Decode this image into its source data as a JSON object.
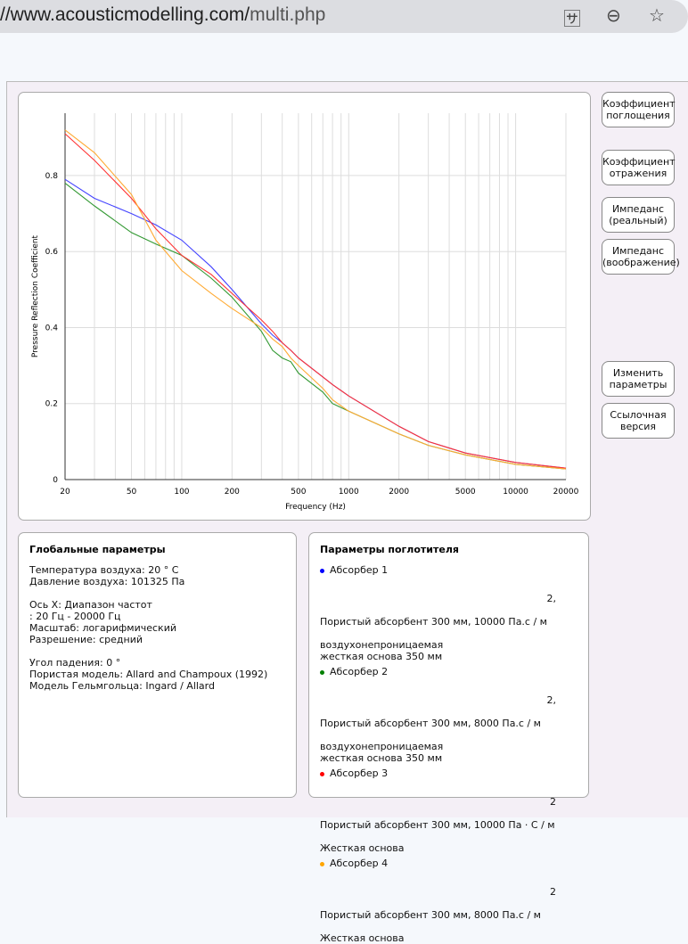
{
  "browser": {
    "url_prefix": "//www.acousticmodelling.com/",
    "url_path": "multi.php"
  },
  "buttons": [
    "Коэффициент поглощения",
    "Коэффициент отражения",
    "Импеданс (реальный)",
    "Импеданс (воображение)",
    "Изменить параметры",
    "Ссылочная версия"
  ],
  "global": {
    "title": "Глобальные параметры",
    "lines": [
      "Температура воздуха: 20 ° C",
      "Давление воздуха: 101325 Па",
      "",
      "Ось X: Диапазон частот",
      ": 20 Гц - 20000 Гц",
      "Масштаб: логарифмический",
      "Разрешение: средний",
      "",
      "Угол падения: 0 °",
      "Пористая модель: Allard and Champoux (1992)",
      "Модель Гельмгольца: Ingard / Allard"
    ]
  },
  "absorbers": {
    "title": "Параметры поглотителя",
    "items": [
      {
        "name": "Абсорбер 1",
        "color": "#0000ff",
        "sup": "2,",
        "desc": "Пористый абсорбент 300 мм, 10000 Па.с / м",
        "extra": "воздухонепроницаемая\nжесткая основа 350 мм"
      },
      {
        "name": "Абсорбер 2",
        "color": "#008000",
        "sup": "2,",
        "desc": "Пористый абсорбент 300 мм, 8000 Па.с / м",
        "extra": "воздухонепроницаемая\nжесткая основа 350 мм"
      },
      {
        "name": "Абсорбер 3",
        "color": "#ff0000",
        "sup": "2",
        "desc": "Пористый абсорбент 300 мм, 10000 Па · С / м",
        "extra": "Жесткая основа"
      },
      {
        "name": "Абсорбер 4",
        "color": "#ffa500",
        "sup": "2",
        "desc": "Пористый абсорбент 300 мм, 8000 Па.с / м",
        "extra": "Жесткая основа"
      }
    ]
  },
  "chart_data": {
    "type": "line",
    "xscale": "log",
    "xlabel": "Frequency (Hz)",
    "ylabel": "Pressure Reflection Coefficient",
    "xlim": [
      20,
      20000
    ],
    "ylim": [
      0,
      0.964
    ],
    "xticks": [
      20,
      50,
      100,
      200,
      500,
      1000,
      2000,
      5000,
      10000,
      20000
    ],
    "yticks": [
      0,
      0.2,
      0.4,
      0.6,
      0.8
    ],
    "x": [
      20,
      30,
      50,
      70,
      100,
      150,
      200,
      300,
      350,
      400,
      450,
      500,
      700,
      800,
      1000,
      2000,
      3000,
      5000,
      10000,
      20000
    ],
    "series": [
      {
        "name": "Абсорбер 1",
        "color": "#4444ff",
        "values": [
          0.79,
          0.74,
          0.7,
          0.67,
          0.63,
          0.56,
          0.5,
          0.41,
          0.38,
          0.36,
          0.34,
          0.32,
          0.27,
          0.25,
          0.22,
          0.14,
          0.1,
          0.07,
          0.045,
          0.03
        ]
      },
      {
        "name": "Абсорбер 2",
        "color": "#339933",
        "values": [
          0.78,
          0.72,
          0.65,
          0.62,
          0.59,
          0.53,
          0.48,
          0.39,
          0.34,
          0.32,
          0.31,
          0.28,
          0.23,
          0.2,
          0.18,
          0.12,
          0.09,
          0.065,
          0.04,
          0.028
        ]
      },
      {
        "name": "Абсорбер 3",
        "color": "#ff3333",
        "values": [
          0.91,
          0.84,
          0.74,
          0.66,
          0.59,
          0.54,
          0.49,
          0.42,
          0.39,
          0.36,
          0.34,
          0.32,
          0.27,
          0.25,
          0.22,
          0.14,
          0.1,
          0.07,
          0.045,
          0.03
        ]
      },
      {
        "name": "Абсорбер 4",
        "color": "#ffaa33",
        "values": [
          0.92,
          0.86,
          0.75,
          0.63,
          0.55,
          0.49,
          0.45,
          0.4,
          0.37,
          0.35,
          0.32,
          0.3,
          0.24,
          0.21,
          0.18,
          0.12,
          0.09,
          0.065,
          0.04,
          0.028
        ]
      }
    ]
  }
}
